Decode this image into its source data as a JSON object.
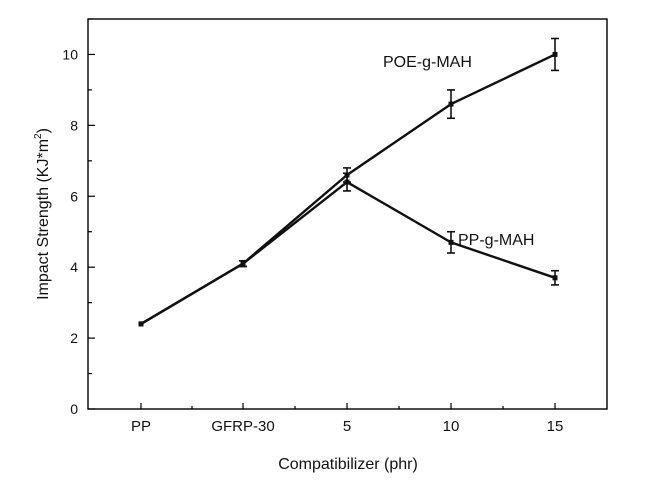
{
  "chart_data": {
    "type": "line",
    "title": "",
    "xlabel": "Compatibilizer (phr)",
    "ylabel_main": "Impact Strength (KJ*m",
    "ylabel_sup": "2",
    "ylabel_close": ")",
    "ylabel": "Impact Strength (KJ*m2)",
    "categories": [
      "PP",
      "GFRP-30",
      "5",
      "10",
      "15"
    ],
    "ylim": [
      0,
      11
    ],
    "yticks": [
      "0",
      "2",
      "4",
      "6",
      "8",
      "10"
    ],
    "grid": false,
    "series": [
      {
        "name": "POE-g-MAH",
        "values": [
          2.4,
          4.1,
          6.6,
          8.6,
          10.0
        ],
        "errors": [
          0,
          0.08,
          0.2,
          0.4,
          0.45
        ]
      },
      {
        "name": "PP-g-MAH",
        "values": [
          2.4,
          4.1,
          6.4,
          4.7,
          3.7
        ],
        "errors": [
          0,
          0.08,
          0.25,
          0.3,
          0.2
        ]
      }
    ]
  }
}
